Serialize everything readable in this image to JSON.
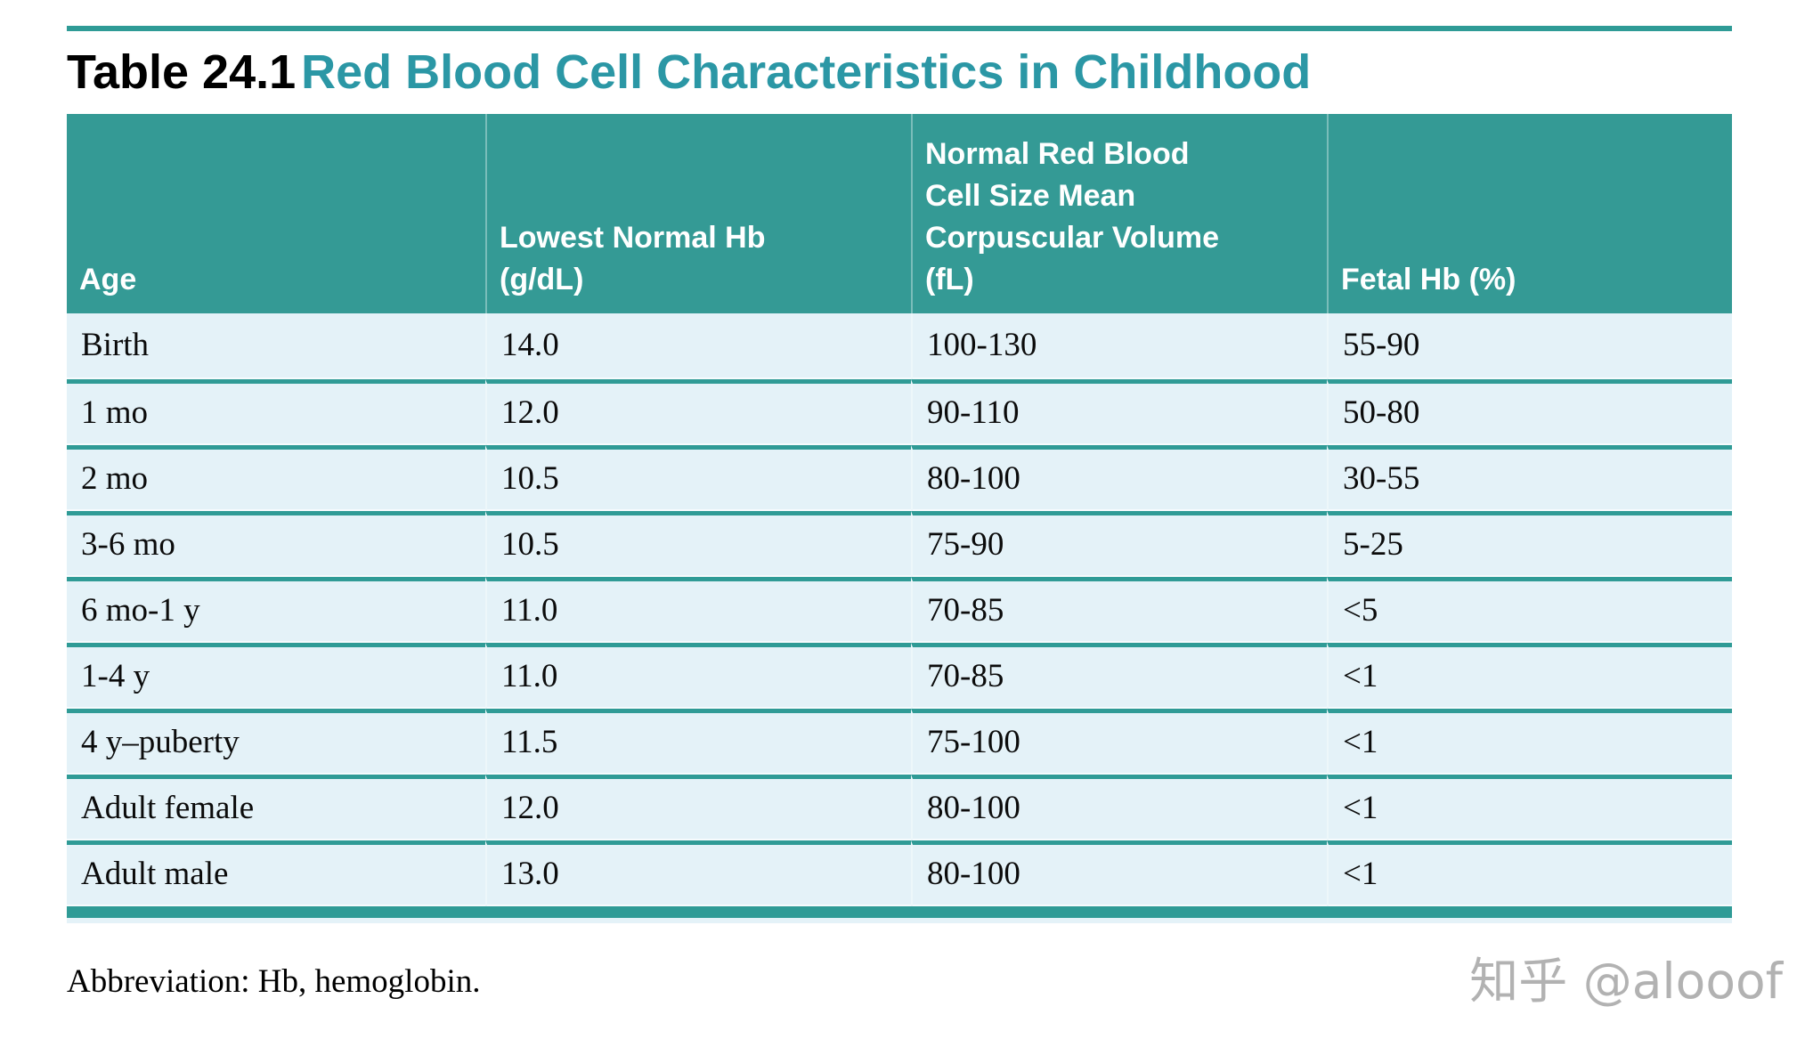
{
  "page": {
    "title": {
      "label": "Table 24.1",
      "text": "Red Blood Cell Characteristics in Childhood"
    },
    "table": {
      "columns": [
        "Age",
        "Lowest Normal Hb\n(g/dL)",
        "Normal Red Blood\nCell Size Mean\nCorpuscular Volume\n(fL)",
        "Fetal Hb (%)"
      ],
      "rows": [
        [
          "Birth",
          "14.0",
          "100-130",
          "55-90"
        ],
        [
          "1 mo",
          "12.0",
          "90-110",
          "50-80"
        ],
        [
          "2 mo",
          "10.5",
          "80-100",
          "30-55"
        ],
        [
          "3-6 mo",
          "10.5",
          "75-90",
          "5-25"
        ],
        [
          "6 mo-1 y",
          "11.0",
          "70-85",
          "<5"
        ],
        [
          "1-4 y",
          "11.0",
          "70-85",
          "<1"
        ],
        [
          "4 y–puberty",
          "11.5",
          "75-100",
          "<1"
        ],
        [
          "Adult female",
          "12.0",
          "80-100",
          "<1"
        ],
        [
          "Adult male",
          "13.0",
          "80-100",
          "<1"
        ]
      ]
    },
    "footnote": "Abbreviation: Hb, hemoglobin.",
    "watermark": "知乎 @alooof",
    "colors": {
      "teal_accent": "#2F9B96",
      "header_background": "#349A95",
      "title_teal": "#2B97A5",
      "row_background": "#E4F2F8",
      "watermark_gray": "#B2B2B2"
    }
  }
}
